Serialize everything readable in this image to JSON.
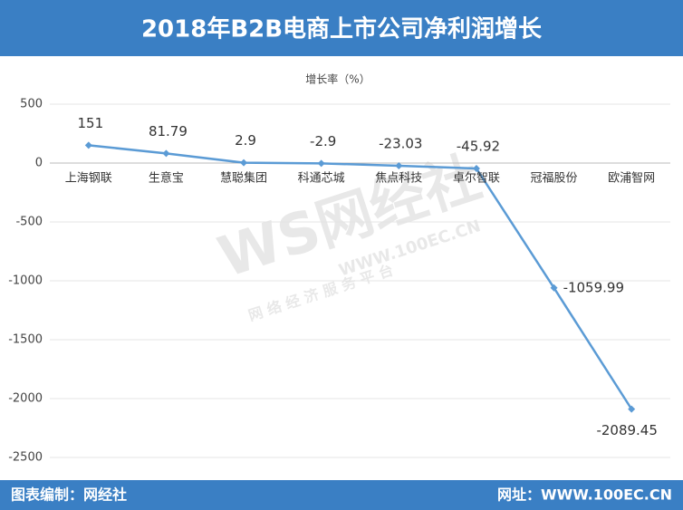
{
  "chart_data": {
    "type": "line",
    "title": "2018年B2B电商上市公司净利润增长",
    "y_label": "增长率（%）",
    "categories": [
      "上海钢联",
      "生意宝",
      "慧聪集团",
      "科通芯城",
      "焦点科技",
      "卓尔智联",
      "冠福股份",
      "欧浦智网"
    ],
    "values": [
      151,
      81.79,
      2.9,
      -2.9,
      -23.03,
      -45.92,
      -1059.99,
      -2089.45
    ],
    "color": "#5b9bd5",
    "ylim": [
      -2500,
      500
    ],
    "yticks": [
      500,
      0,
      -500,
      -1000,
      -1500,
      -2000,
      -2500
    ],
    "grid": true,
    "source": "图表编制：网经社",
    "website": "网址：WWW.100EC.CN",
    "watermark": [
      "WS网经社",
      "WWW.100EC.CN",
      "网 络 经 济 服 务 平 台"
    ]
  }
}
